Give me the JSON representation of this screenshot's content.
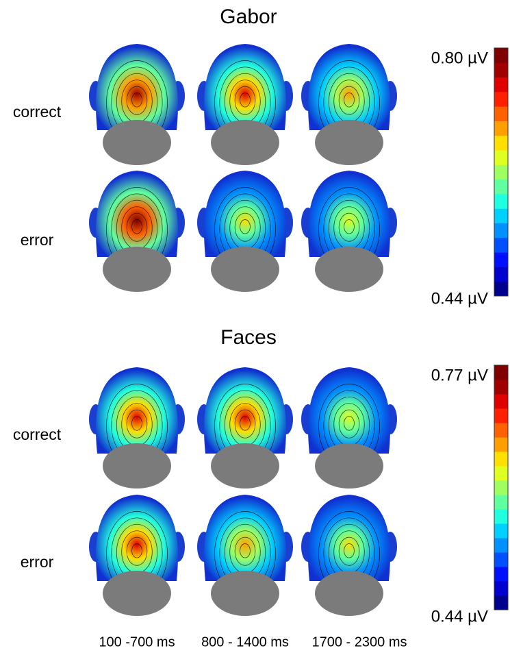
{
  "panels": [
    {
      "title": "Gabor",
      "rows": [
        "correct",
        "error"
      ],
      "colorbar": {
        "max": "0.80 µV",
        "min": "0.44 µV"
      }
    },
    {
      "title": "Faces",
      "rows": [
        "correct",
        "error"
      ],
      "colorbar": {
        "max": "0.77 µV",
        "min": "0.44 µV"
      }
    }
  ],
  "columns": [
    "100 -700 ms",
    "800 - 1400 ms",
    "1700 - 2300 ms"
  ]
}
